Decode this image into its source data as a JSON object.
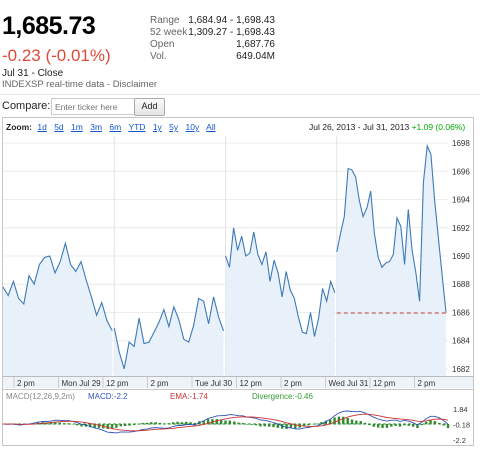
{
  "quote": {
    "price": "1,685.73",
    "change": "-0.23 (-0.01%)",
    "date": "Jul 31 - Close",
    "source": "INDEXSP real-time data - Disclaimer",
    "stats": [
      {
        "key": "Range",
        "value": "1,684.94 - 1,698.43"
      },
      {
        "key": "52 week",
        "value": "1,309.27 - 1,698.43"
      },
      {
        "key": "Open",
        "value": "1,687.76"
      },
      {
        "key": "Vol.",
        "value": "649.04M"
      }
    ]
  },
  "compare": {
    "label": "Compare:",
    "placeholder": "Enter ticker here",
    "add_label": "Add"
  },
  "zoom": {
    "label": "Zoom:",
    "options": [
      "1d",
      "5d",
      "1m",
      "3m",
      "6m",
      "YTD",
      "1y",
      "5y",
      "10y",
      "All"
    ],
    "range_text": "Jul 26, 2013 - Jul 31, 2013",
    "range_change": "+1.09 (0.06%)"
  },
  "colors": {
    "up": "#00aa00",
    "down": "#dd4b39",
    "line": "#3d7ab8",
    "fill": "#e8f1fa",
    "link": "#1155cc"
  },
  "chart_data": {
    "type": "line",
    "y_ticks": [
      "1698",
      "1696",
      "1694",
      "1692",
      "1690",
      "1688",
      "1686",
      "1684",
      "1682"
    ],
    "x_ticks": [
      "2 pm",
      "Mon Jul 29",
      "12 pm",
      "2 pm",
      "Tue Jul 30",
      "12 pm",
      "2 pm",
      "Wed Jul 31",
      "12 pm",
      "2 pm"
    ],
    "ylim": [
      1681.5,
      1698.5
    ],
    "previous_close": 1685.96,
    "sessions": [
      [
        1687.8,
        1687.2,
        1688.2,
        1687.0,
        1686.6,
        1688.6,
        1688.0,
        1689.4,
        1689.9,
        1690.0,
        1688.8,
        1689.6,
        1690.9,
        1689.4,
        1688.9,
        1689.6,
        1688.3,
        1687.1,
        1685.8,
        1686.7,
        1685.4,
        1684.7
      ],
      [
        1684.9,
        1683.2,
        1682.0,
        1683.9,
        1683.6,
        1685.6,
        1683.8,
        1683.9,
        1684.6,
        1685.3,
        1686.2,
        1685.0,
        1686.4,
        1685.5,
        1684.1,
        1683.9,
        1685.1,
        1687.0,
        1686.8,
        1685.2,
        1687.1,
        1685.7,
        1684.7
      ],
      [
        1690.0,
        1689.2,
        1692.0,
        1690.4,
        1691.4,
        1690.0,
        1690.2,
        1691.7,
        1690.1,
        1689.4,
        1690.3,
        1688.2,
        1689.7,
        1688.8,
        1687.1,
        1688.9,
        1687.6,
        1687.0,
        1685.7,
        1684.6,
        1684.5,
        1686.0,
        1684.3,
        1685.6,
        1687.7,
        1686.8,
        1688.2,
        1687.4
      ],
      [
        1690.3,
        1691.6,
        1692.8,
        1696.2,
        1696.1,
        1695.6,
        1693.9,
        1692.8,
        1693.4,
        1694.6,
        1691.6,
        1689.9,
        1689.2,
        1689.5,
        1689.6,
        1690.1,
        1692.7,
        1692.1,
        1689.4,
        1693.3,
        1690.4,
        1688.8,
        1686.8,
        1695.2,
        1697.8,
        1697.2,
        1693.9,
        1691.2,
        1688.6,
        1686.0
      ]
    ],
    "indicators": {
      "macd_params": "MACD(12,26,9,2m)",
      "macd": "MACD:-2.2",
      "ema": "EMA:-1.74",
      "divergence": "Divergence:-0.46",
      "ticks": [
        "1.84",
        "-0.18",
        "-2.2"
      ]
    }
  }
}
